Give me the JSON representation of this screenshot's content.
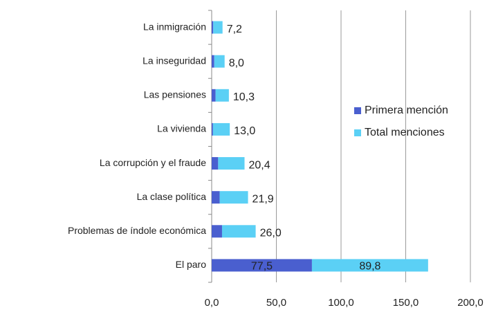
{
  "chart_data": {
    "type": "bar",
    "orientation": "horizontal",
    "stacked": true,
    "categories": [
      "La inmigración",
      "La inseguridad",
      "Las pensiones",
      "La vivienda",
      "La corrupción y el fraude",
      "La clase política",
      "Problemas de índole económica",
      "El paro"
    ],
    "series": [
      {
        "name": "Primera mención",
        "color": "#4a5fcf",
        "values": [
          1.2,
          2.0,
          3.0,
          1.0,
          5.0,
          6.2,
          8.0,
          77.5
        ],
        "value_labels": [
          null,
          null,
          null,
          null,
          null,
          null,
          null,
          "77,5"
        ]
      },
      {
        "name": "Total menciones",
        "color": "#5bd0f5",
        "values": [
          7.2,
          8.0,
          10.3,
          13.0,
          20.4,
          21.9,
          26.0,
          89.8
        ],
        "value_labels": [
          "7,2",
          "8,0",
          "10,3",
          "13,0",
          "20,4",
          "21,9",
          "26,0",
          "89,8"
        ]
      }
    ],
    "xlim": [
      0,
      200
    ],
    "xticks": [
      {
        "value": 0,
        "label": "0,0"
      },
      {
        "value": 50,
        "label": "50,0"
      },
      {
        "value": 100,
        "label": "100,0"
      },
      {
        "value": 150,
        "label": "150,0"
      },
      {
        "value": 200,
        "label": "200,0"
      }
    ],
    "grid": true,
    "legend": "right"
  }
}
